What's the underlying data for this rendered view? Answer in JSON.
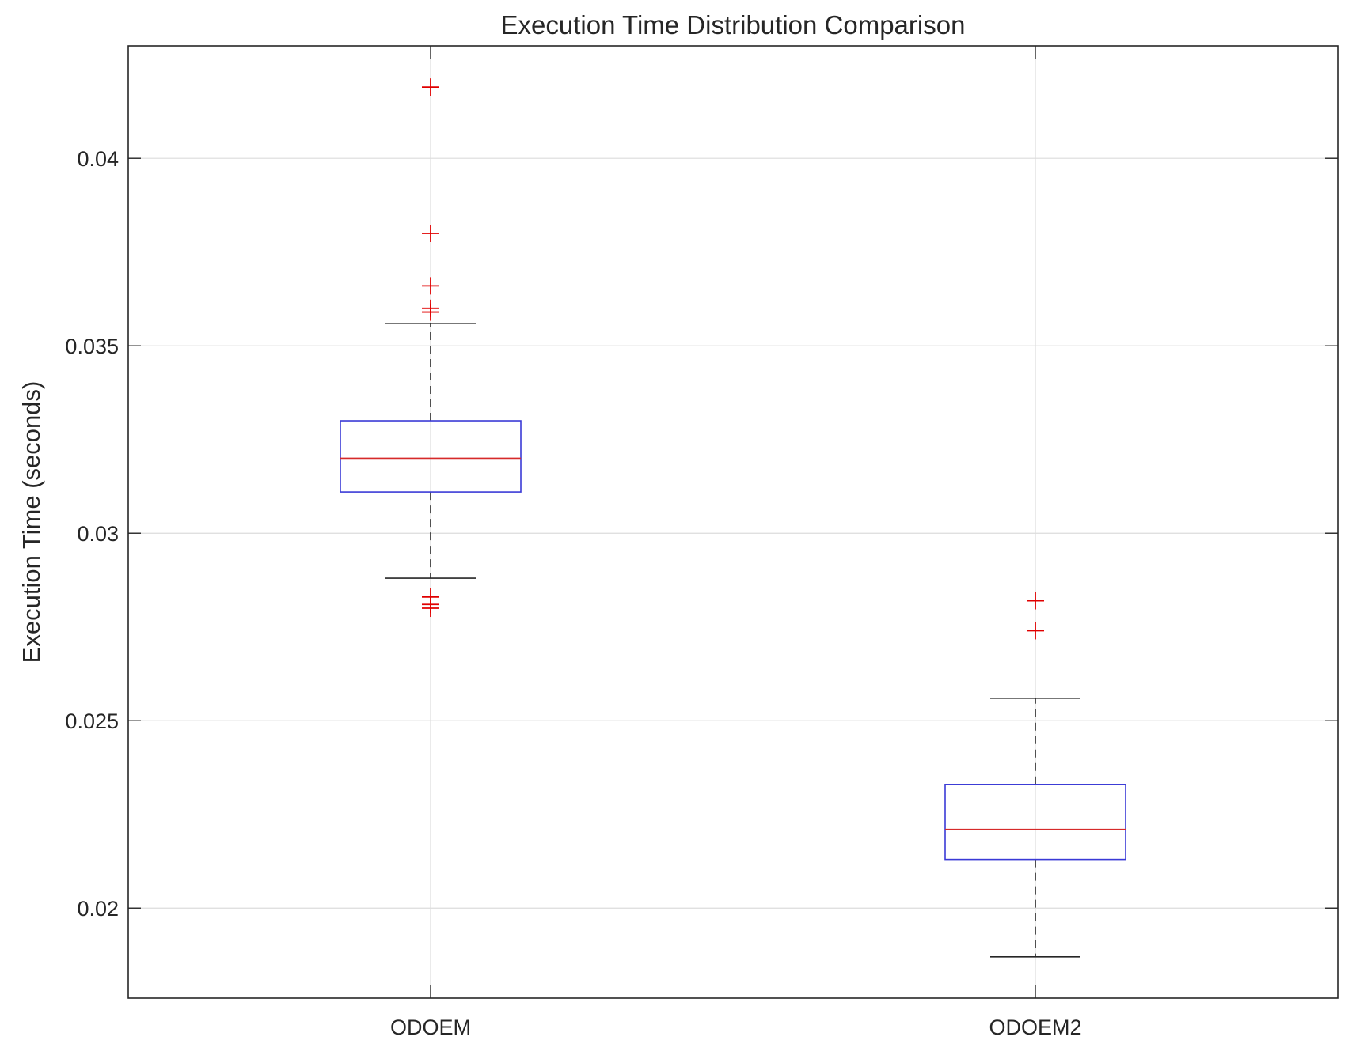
{
  "chart_data": {
    "type": "boxplot",
    "title": "Execution Time Distribution Comparison",
    "xlabel": "",
    "ylabel": "Execution Time (seconds)",
    "ylim": [
      0.0176,
      0.043
    ],
    "yticks": [
      0.02,
      0.025,
      0.03,
      0.035,
      0.04
    ],
    "ytick_labels": [
      "0.02",
      "0.025",
      "0.03",
      "0.035",
      "0.04"
    ],
    "grid": true,
    "categories": [
      "ODOEM",
      "ODOEM2"
    ],
    "series": [
      {
        "name": "ODOEM",
        "q1": 0.0311,
        "median": 0.032,
        "q3": 0.033,
        "whisker_low": 0.0288,
        "whisker_high": 0.0356,
        "outliers": [
          0.0419,
          0.038,
          0.0366,
          0.036,
          0.0359,
          0.0283,
          0.0281,
          0.028
        ]
      },
      {
        "name": "ODOEM2",
        "q1": 0.0213,
        "median": 0.0221,
        "q3": 0.0233,
        "whisker_low": 0.0187,
        "whisker_high": 0.0256,
        "outliers": [
          0.0282,
          0.0274
        ]
      }
    ],
    "colors": {
      "box": "#3a3ad6",
      "median": "#d62a2a",
      "whisker": "#262626",
      "outlier": "#e00000",
      "grid": "#dcdcdc",
      "axis": "#262626"
    }
  }
}
